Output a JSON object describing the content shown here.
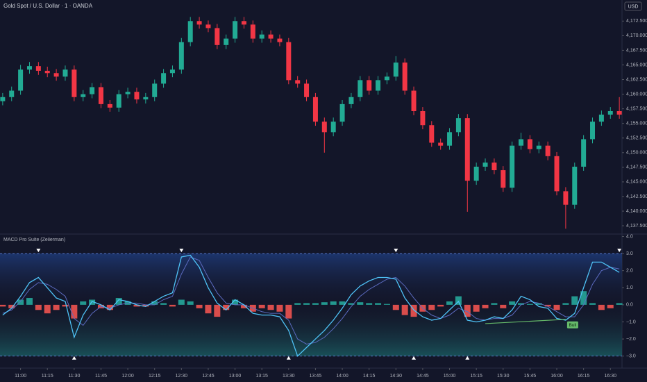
{
  "chart_data": [
    {
      "type": "candlestick",
      "title": "Gold Spot / U.S. Dollar · 1 · OANDA",
      "currency": "USD",
      "up_color": "#22ab94",
      "down_color": "#f23645",
      "xlim": [
        -0.3,
        69.3
      ],
      "ylim": [
        4136.2,
        4176.1
      ],
      "yticks": [
        {
          "value": 4137.5,
          "label": "4,137.500"
        },
        {
          "value": 4140,
          "label": "4,140.000"
        },
        {
          "value": 4142.5,
          "label": "4,142.500"
        },
        {
          "value": 4145,
          "label": "4,145.000"
        },
        {
          "value": 4147.5,
          "label": "4,147.500"
        },
        {
          "value": 4150,
          "label": "4,150.000"
        },
        {
          "value": 4152.5,
          "label": "4,152.500"
        },
        {
          "value": 4155,
          "label": "4,155.000"
        },
        {
          "value": 4157.5,
          "label": "4,157.500"
        },
        {
          "value": 4160,
          "label": "4,160.000"
        },
        {
          "value": 4162.5,
          "label": "4,162.500"
        },
        {
          "value": 4165,
          "label": "4,165.000"
        },
        {
          "value": 4167.5,
          "label": "4,167.500"
        },
        {
          "value": 4170,
          "label": "4,170.000"
        },
        {
          "value": 4172.5,
          "label": "4,172.500"
        }
      ],
      "open": [
        4158.8,
        4159.5,
        4160.6,
        4164.2,
        4164.8,
        4164.0,
        4163.6,
        4163.0,
        4164.2,
        4159.5,
        4160.0,
        4161.2,
        4158.3,
        4157.7,
        4160.0,
        4160.4,
        4159.1,
        4159.5,
        4161.8,
        4163.6,
        4164.2,
        4168.9,
        4172.5,
        4171.9,
        4171.3,
        4168.4,
        4169.5,
        4172.5,
        4171.9,
        4169.5,
        4170.2,
        4169.5,
        4168.9,
        4162.4,
        4161.8,
        4159.5,
        4155.3,
        4153.5,
        4155.3,
        4158.3,
        4159.5,
        4162.4,
        4160.6,
        4162.4,
        4163.0,
        4165.4,
        4160.6,
        4157.1,
        4154.7,
        4151.7,
        4151.2,
        4153.5,
        4155.9,
        4145.2,
        4147.6,
        4148.3,
        4147.0,
        4144.0,
        4151.2,
        4152.3,
        4150.6,
        4151.2,
        4149.4,
        4143.4,
        4141.1,
        4147.6,
        4152.3,
        4155.3,
        4156.5,
        4157.1
      ],
      "high": [
        4160.2,
        4161.3,
        4165.0,
        4165.5,
        4165.5,
        4164.7,
        4164.3,
        4164.9,
        4164.9,
        4160.7,
        4161.9,
        4161.9,
        4159.0,
        4160.7,
        4161.1,
        4161.1,
        4160.2,
        4162.5,
        4164.3,
        4164.9,
        4169.6,
        4173.2,
        4173.2,
        4172.6,
        4172.0,
        4170.2,
        4173.2,
        4173.2,
        4172.6,
        4170.9,
        4170.9,
        4170.2,
        4169.6,
        4163.1,
        4162.5,
        4160.2,
        4156.0,
        4156.0,
        4159.0,
        4160.2,
        4163.1,
        4163.1,
        4163.1,
        4163.7,
        4166.5,
        4166.1,
        4161.3,
        4157.8,
        4155.4,
        4152.4,
        4154.2,
        4156.6,
        4156.6,
        4148.3,
        4149.0,
        4149.0,
        4147.7,
        4151.9,
        4153.4,
        4153.0,
        4151.9,
        4151.9,
        4150.1,
        4144.1,
        4148.3,
        4153.0,
        4156.0,
        4157.2,
        4157.8,
        4159.5
      ],
      "low": [
        4158.1,
        4158.8,
        4159.9,
        4163.5,
        4163.3,
        4162.9,
        4162.3,
        4162.3,
        4158.8,
        4158.8,
        4159.3,
        4157.6,
        4157.0,
        4157.0,
        4159.3,
        4158.4,
        4158.4,
        4158.8,
        4161.1,
        4162.9,
        4163.5,
        4168.2,
        4171.2,
        4170.6,
        4167.7,
        4167.7,
        4168.8,
        4171.2,
        4168.8,
        4168.8,
        4168.8,
        4168.2,
        4161.7,
        4161.1,
        4158.8,
        4154.6,
        4150.0,
        4152.8,
        4154.6,
        4157.6,
        4158.8,
        4159.9,
        4159.9,
        4161.7,
        4162.3,
        4159.9,
        4156.4,
        4154.0,
        4151.0,
        4150.5,
        4150.5,
        4152.8,
        4139.9,
        4144.5,
        4146.9,
        4146.3,
        4143.3,
        4143.3,
        4150.5,
        4149.9,
        4149.9,
        4148.7,
        4142.7,
        4137.0,
        4140.4,
        4146.9,
        4151.6,
        4154.6,
        4155.8,
        4155.8
      ],
      "close": [
        4159.5,
        4160.6,
        4164.2,
        4164.8,
        4164.0,
        4163.6,
        4163.0,
        4164.2,
        4159.5,
        4160.0,
        4161.2,
        4158.3,
        4157.7,
        4160.0,
        4160.4,
        4159.1,
        4159.5,
        4161.8,
        4163.6,
        4164.2,
        4168.9,
        4172.5,
        4171.9,
        4171.3,
        4168.4,
        4169.5,
        4172.5,
        4171.9,
        4169.5,
        4170.2,
        4169.5,
        4168.9,
        4162.4,
        4161.8,
        4159.5,
        4155.3,
        4153.5,
        4155.3,
        4158.3,
        4159.5,
        4162.4,
        4160.6,
        4162.4,
        4163.0,
        4165.4,
        4160.6,
        4157.1,
        4154.7,
        4151.7,
        4151.2,
        4153.5,
        4155.9,
        4145.2,
        4147.6,
        4148.3,
        4147.0,
        4144.0,
        4151.2,
        4152.3,
        4150.6,
        4151.2,
        4149.4,
        4143.4,
        4141.1,
        4147.6,
        4152.3,
        4155.3,
        4156.5,
        4157.1,
        4156.5
      ]
    },
    {
      "type": "macd",
      "title": "MACD Pro Suite (Zeiierman)",
      "xlim": [
        -0.3,
        69.3
      ],
      "ylim": [
        -3.5,
        4.1
      ],
      "yticks": [
        {
          "value": 4,
          "label": "4.0"
        },
        {
          "value": 3,
          "label": "3.0"
        },
        {
          "value": 2,
          "label": "2.0"
        },
        {
          "value": 1,
          "label": "1.0"
        },
        {
          "value": 0,
          "label": "0.0"
        },
        {
          "value": -1,
          "label": "−1.0"
        },
        {
          "value": -2,
          "label": "−2.0"
        },
        {
          "value": -3,
          "label": "−3.0"
        }
      ],
      "xticks": [
        {
          "value": 2,
          "label": "11:00"
        },
        {
          "value": 5,
          "label": "11:15"
        },
        {
          "value": 8,
          "label": "11:30"
        },
        {
          "value": 11,
          "label": "11:45"
        },
        {
          "value": 14,
          "label": "12:00"
        },
        {
          "value": 17,
          "label": "12:15"
        },
        {
          "value": 20,
          "label": "12:30"
        },
        {
          "value": 23,
          "label": "12:45"
        },
        {
          "value": 26,
          "label": "13:00"
        },
        {
          "value": 29,
          "label": "13:15"
        },
        {
          "value": 32,
          "label": "13:30"
        },
        {
          "value": 35,
          "label": "13:45"
        },
        {
          "value": 38,
          "label": "14:00"
        },
        {
          "value": 41,
          "label": "14:15"
        },
        {
          "value": 44,
          "label": "14:30"
        },
        {
          "value": 47,
          "label": "14:45"
        },
        {
          "value": 50,
          "label": "15:00"
        },
        {
          "value": 53,
          "label": "15:15"
        },
        {
          "value": 56,
          "label": "15:30"
        },
        {
          "value": 59,
          "label": "15:45"
        },
        {
          "value": 62,
          "label": "16:00"
        },
        {
          "value": 65,
          "label": "16:15"
        },
        {
          "value": 68,
          "label": "16:30"
        }
      ],
      "bands": [
        3,
        -3
      ],
      "hist_up_color": "#26a69a",
      "hist_down_color": "#ef5350",
      "histogram": [
        -0.1,
        -0.2,
        0.3,
        0.4,
        -0.3,
        -0.5,
        -0.3,
        -0.1,
        -0.8,
        0.2,
        0.3,
        -0.2,
        -0.3,
        0.4,
        0.2,
        -0.1,
        -0.1,
        0.2,
        0.1,
        -0.1,
        0.3,
        0.2,
        -0.2,
        -0.5,
        -0.7,
        -0.3,
        0.3,
        -0.2,
        -0.4,
        -0.2,
        -0.3,
        -0.4,
        -0.8,
        0.1,
        0.1,
        0.1,
        0.15,
        0.2,
        0.2,
        0.1,
        0.15,
        0.1,
        0.1,
        0.05,
        -0.3,
        -0.6,
        -0.7,
        -0.4,
        -0.3,
        -0.1,
        0.2,
        0.5,
        -0.7,
        -0.4,
        -0.2,
        0.1,
        -0.2,
        0.2,
        0.1,
        0.05,
        0.1,
        -0.1,
        -0.3,
        0.1,
        0.5,
        0.8,
        0.1,
        -0.3,
        -0.2,
        0.1
      ],
      "macd_line": {
        "color": "#4fc3f7",
        "values": [
          -0.6,
          -0.2,
          0.5,
          1.3,
          1.6,
          1.0,
          0.4,
          0.2,
          -1.9,
          -0.6,
          0.2,
          0.0,
          -0.3,
          0.3,
          0.2,
          0.0,
          -0.1,
          0.2,
          0.5,
          0.7,
          2.8,
          2.9,
          2.2,
          1.0,
          0.1,
          -0.3,
          0.3,
          0.0,
          -0.5,
          -0.6,
          -0.6,
          -0.7,
          -1.5,
          -3.0,
          -2.5,
          -2.0,
          -1.5,
          -0.9,
          -0.2,
          0.6,
          1.1,
          1.4,
          1.6,
          1.6,
          1.5,
          0.4,
          -0.3,
          -0.7,
          -0.9,
          -0.8,
          -0.3,
          0.2,
          -0.9,
          -1.0,
          -0.9,
          -0.7,
          -0.8,
          -0.3,
          0.5,
          0.3,
          -0.1,
          -0.2,
          -0.8,
          -0.9,
          -0.5,
          1.0,
          2.5,
          2.5,
          2.2,
          1.9
        ]
      },
      "signal_line": {
        "color": "#5c6bc0",
        "values": [
          -0.5,
          -0.3,
          0.2,
          0.9,
          1.3,
          1.2,
          0.9,
          0.5,
          -0.8,
          -1.2,
          -0.5,
          -0.1,
          -0.2,
          0.0,
          0.1,
          0.1,
          0.0,
          0.0,
          0.3,
          0.5,
          1.8,
          2.8,
          2.6,
          1.6,
          0.7,
          0.1,
          0.0,
          0.0,
          -0.2,
          -0.4,
          -0.5,
          -0.5,
          -0.9,
          -2.0,
          -2.3,
          -2.2,
          -1.9,
          -1.4,
          -0.8,
          -0.1,
          0.5,
          0.9,
          1.2,
          1.5,
          1.6,
          1.1,
          0.4,
          -0.2,
          -0.6,
          -0.8,
          -0.6,
          -0.2,
          -0.4,
          -0.8,
          -0.9,
          -0.8,
          -0.8,
          -0.6,
          0.0,
          0.2,
          0.1,
          -0.1,
          -0.4,
          -0.7,
          -0.7,
          0.0,
          1.2,
          2.0,
          2.2,
          2.1
        ]
      },
      "top_markers": [
        4,
        20,
        44,
        69
      ],
      "bottom_markers": [
        8,
        32,
        46,
        52
      ],
      "divergence": {
        "label": "Bull",
        "color": "#66bb6a",
        "x": [
          54,
          63
        ],
        "y": [
          -1.1,
          -0.85
        ]
      }
    }
  ]
}
